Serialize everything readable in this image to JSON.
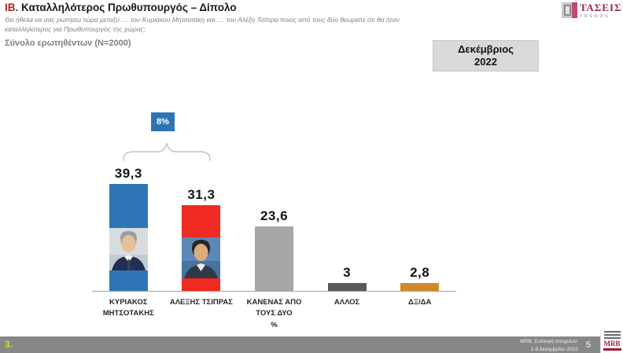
{
  "header": {
    "title_prefix": "ΙΒ.",
    "title": "Καταλληλότερος Πρωθυπουργός – Δίπολο",
    "subtitle_line1": "Θα ήθελα να σας ρωτήσω τώρα μεταξύ .... του Κυριάκου Μητσοτάκη και .... του Αλέξη Τσίπρα ποιος από τους δύο θεωρείτε ότι θα ήταν",
    "subtitle_line2": "καταλληλότερος για Πρωθυπουργός της χώρας;",
    "sample_text": "Σύνολο ερωτηθέντων (N=2000)",
    "period_line1": "Δεκέμβριος",
    "period_line2": "2022"
  },
  "brand": {
    "logo_name": "ΤΑΣΕΙΣ",
    "logo_sub": "TRENDS"
  },
  "chart_data": {
    "type": "bar",
    "title": "ΙΒ. Καταλληλότερος Πρωθυπουργός – Δίπολο",
    "unit": "%",
    "categories": [
      "ΚΥΡΙΑΚΟΣ ΜΗΤΣΟΤΑΚΗΣ",
      "ΑΛΕΞΗΣ ΤΣΙΠΡΑΣ",
      "ΚΑΝΕΝΑΣ ΑΠΟ ΤΟΥΣ ΔΥΟ %",
      "ΑΛΛΟΣ",
      "ΔΞ/ΔΑ"
    ],
    "categories_lines": [
      [
        "ΚΥΡΙΑΚΟΣ",
        "ΜΗΤΣΟΤΑΚΗΣ"
      ],
      [
        "ΑΛΕΞΗΣ ΤΣΙΠΡΑΣ"
      ],
      [
        "ΚΑΝΕΝΑΣ ΑΠΟ",
        "ΤΟΥΣ ΔΥΟ",
        "%"
      ],
      [
        "ΑΛΛΟΣ"
      ],
      [
        "ΔΞ/ΔΑ"
      ]
    ],
    "values": [
      39.3,
      31.3,
      23.6,
      3,
      2.8
    ],
    "value_labels": [
      "39,3",
      "31,3",
      "23,6",
      "3",
      "2,8"
    ],
    "bar_colors": [
      "#2E75B6",
      "#EE2A23",
      "#A6A6A6",
      "#595959",
      "#D08A28"
    ],
    "photo_keys": [
      "mitsotakis-photo",
      "tsipras-photo",
      null,
      null,
      null
    ],
    "annotation": {
      "label": "8%"
    },
    "ylim": [
      0,
      45
    ],
    "grid": false,
    "legend": false
  },
  "footer": {
    "slide_number": "3.",
    "source_line1": "MRB, Συλλογή στοιχείων:",
    "source_line2": "1-9 Δεκεμβρίου 2022",
    "page_number": "5",
    "mrb_logo": "MRB"
  },
  "colors": {
    "title_accent": "#A3262A",
    "annotation_badge": "#2E74B5",
    "period_box_bg": "#D9D9D9",
    "footer_bar": "#878787",
    "slide_number": "#CDDC29",
    "axis": "#A6A6A6"
  }
}
